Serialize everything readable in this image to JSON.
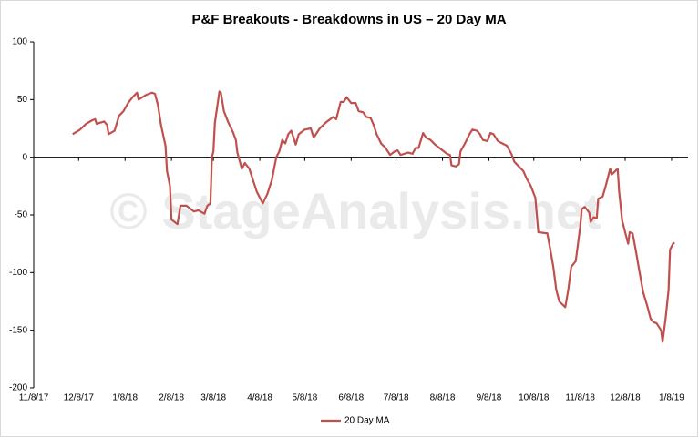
{
  "chart_data": {
    "type": "line",
    "title": "P&F Breakouts - Breakdowns in US – 20 Day MA",
    "watermark": "© StageAnalysis.net",
    "x": [
      "12/4/17",
      "12/9/17",
      "12/13/17",
      "12/17/17",
      "12/19/17",
      "12/20/17",
      "12/25/17",
      "12/27/17",
      "12/28/17",
      "1/1/18",
      "1/4/18",
      "1/7/18",
      "1/10/18",
      "1/13/18",
      "1/16/18",
      "1/17/18",
      "1/22/18",
      "1/26/18",
      "1/28/18",
      "1/30/18",
      "2/1/18",
      "2/4/18",
      "2/5/18",
      "2/7/18",
      "2/8/18",
      "2/12/18",
      "2/14/18",
      "2/18/18",
      "2/23/18",
      "2/26/18",
      "3/2/18",
      "3/4/18",
      "3/6/18",
      "3/7/18",
      "3/8/18",
      "3/9/18",
      "3/12/18",
      "3/13/18",
      "3/15/18",
      "3/18/18",
      "3/21/18",
      "3/23/18",
      "3/24/18",
      "3/27/18",
      "3/29/18",
      "4/1/18",
      "4/6/18",
      "4/10/18",
      "4/13/18",
      "4/16/18",
      "4/19/18",
      "4/21/18",
      "4/23/18",
      "4/25/18",
      "4/27/18",
      "4/29/18",
      "5/1/18",
      "5/2/18",
      "5/4/18",
      "5/8/18",
      "5/12/18",
      "5/14/18",
      "5/18/18",
      "5/22/18",
      "5/27/18",
      "5/29/18",
      "5/30/18",
      "6/1/18",
      "6/3/18",
      "6/5/18",
      "6/8/18",
      "6/11/18",
      "6/13/18",
      "6/16/18",
      "6/18/18",
      "6/21/18",
      "6/23/18",
      "6/25/18",
      "6/28/18",
      "7/1/18",
      "7/4/18",
      "7/7/18",
      "7/9/18",
      "7/11/18",
      "7/16/18",
      "7/19/18",
      "7/21/18",
      "7/23/18",
      "7/26/18",
      "7/28/18",
      "7/31/18",
      "8/3/18",
      "8/5/18",
      "8/8/18",
      "8/11/18",
      "8/13/18",
      "8/14/18",
      "8/17/18",
      "8/19/18",
      "8/20/18",
      "8/23/18",
      "8/26/18",
      "8/28/18",
      "8/31/18",
      "9/2/18",
      "9/4/18",
      "9/7/18",
      "9/9/18",
      "9/11/18",
      "9/14/18",
      "9/17/18",
      "9/20/18",
      "9/23/18",
      "9/25/18",
      "9/28/18",
      "10/1/18",
      "10/3/18",
      "10/6/18",
      "10/9/18",
      "10/11/18",
      "10/17/18",
      "10/19/18",
      "10/21/18",
      "10/23/18",
      "10/25/18",
      "10/29/18",
      "10/31/18",
      "11/2/18",
      "11/5/18",
      "11/6/18",
      "11/8/18",
      "11/9/18",
      "11/11/18",
      "11/14/18",
      "11/15/18",
      "11/17/18",
      "11/19/18",
      "11/20/18",
      "11/23/18",
      "11/25/18",
      "11/28/18",
      "11/29/18",
      "12/3/18",
      "12/4/18",
      "12/6/18",
      "12/10/18",
      "12/11/18",
      "12/13/18",
      "12/15/18",
      "12/17/18",
      "12/20/18",
      "12/23/18",
      "12/25/18",
      "12/27/18",
      "12/29/18",
      "1/1/19",
      "1/2/19",
      "1/4/19",
      "1/6/19",
      "1/7/19",
      "1/9/19",
      "1/10/19"
    ],
    "series": [
      {
        "name": "20 Day MA",
        "color": "#c0504d",
        "values": [
          20,
          24,
          29,
          32,
          33,
          29,
          31,
          28,
          20,
          23,
          36,
          40,
          47,
          52,
          56,
          50,
          54,
          56,
          55,
          45,
          28,
          10,
          -12,
          -25,
          -54,
          -58,
          -42,
          -42,
          -47,
          -46,
          -49,
          -42,
          -40,
          0,
          5,
          30,
          57,
          56,
          40,
          30,
          22,
          15,
          4,
          -10,
          -5,
          -10,
          -30,
          -40,
          -32,
          -20,
          0,
          5,
          15,
          12,
          20,
          23,
          15,
          11,
          20,
          24,
          25,
          17,
          25,
          30,
          35,
          33,
          38,
          48,
          48,
          52,
          47,
          47,
          40,
          39,
          35,
          34,
          28,
          20,
          12,
          8,
          2,
          5,
          6,
          2,
          4,
          3,
          8,
          8,
          21,
          17,
          15,
          11,
          9,
          6,
          3,
          2,
          -7,
          -8,
          -6,
          5,
          12,
          20,
          24,
          23,
          20,
          15,
          14,
          21,
          20,
          14,
          12,
          10,
          3,
          -4,
          -8,
          -12,
          -18,
          -25,
          -35,
          -65,
          -66,
          -80,
          -95,
          -115,
          -125,
          -130,
          -115,
          -95,
          -90,
          -80,
          -60,
          -45,
          -43,
          -48,
          -56,
          -52,
          -53,
          -36,
          -34,
          -25,
          -10,
          -15,
          -10,
          -30,
          -55,
          -75,
          -65,
          -66,
          -80,
          -95,
          -117,
          -130,
          -140,
          -143,
          -144,
          -150,
          -160,
          -140,
          -115,
          -80,
          -75,
          -74
        ]
      }
    ],
    "xlim": [
      "11/8/17",
      "1/19/19"
    ],
    "xticks": [
      "11/8/17",
      "12/8/17",
      "1/8/18",
      "2/8/18",
      "3/8/18",
      "4/8/18",
      "5/8/18",
      "6/8/18",
      "7/8/18",
      "8/8/18",
      "9/8/18",
      "10/8/18",
      "11/8/18",
      "12/8/18",
      "1/8/19"
    ],
    "ylim": [
      -200,
      100
    ],
    "yticks": [
      100,
      50,
      0,
      -50,
      -100,
      -150,
      -200
    ],
    "grid": false,
    "legend": "bottom"
  }
}
